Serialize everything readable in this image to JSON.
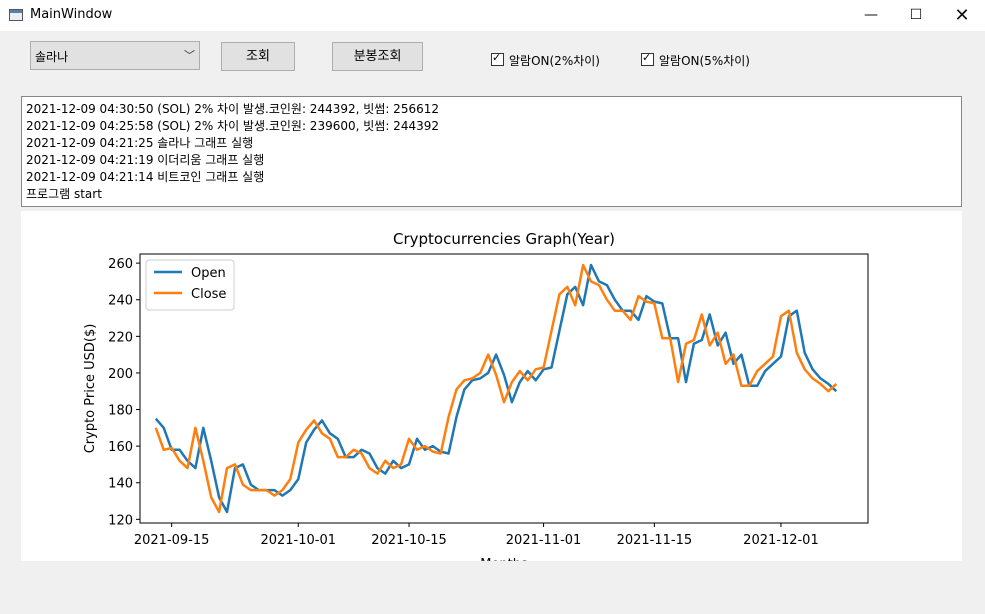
{
  "window": {
    "title": "MainWindow",
    "minimize_glyph": "—",
    "maximize_glyph": "☐",
    "close_glyph": "✕"
  },
  "toolbar": {
    "coin_select": "솔라나",
    "query_button": "조회",
    "minute_query_button": "분봉조회",
    "alarm_2pct": {
      "label": "알람ON(2%차이)",
      "checked": true
    },
    "alarm_5pct": {
      "label": "알람ON(5%차이)",
      "checked": true
    }
  },
  "log": {
    "lines": [
      "2021-12-09 04:30:50 (SOL) 2% 차이 발생.코인원: 244392, 빗썸: 256612",
      "2021-12-09 04:25:58 (SOL) 2% 차이 발생.코인원: 239600, 빗썸: 244392",
      "2021-12-09 04:21:25 솔라나 그래프 실행",
      "2021-12-09 04:21:19 이더리움 그래프 실행",
      "2021-12-09 04:21:14 비트코인 그래프 실행",
      "프로그램 start"
    ]
  },
  "chart_data": {
    "type": "line",
    "title": "Cryptocurrencies Graph(Year)",
    "xlabel": "Months",
    "ylabel": "Crypto Price USD($)",
    "x_start": "2021-09-13",
    "x_ticks": [
      "2021-09-15",
      "2021-10-01",
      "2021-10-15",
      "2021-11-01",
      "2021-11-15",
      "2021-12-01"
    ],
    "xlim": [
      "2021-09-11",
      "2021-12-12"
    ],
    "ylim": [
      118,
      265
    ],
    "y_ticks": [
      120,
      140,
      160,
      180,
      200,
      220,
      240,
      260
    ],
    "legend": "top-left",
    "series": [
      {
        "name": "Open",
        "color": "#1f77b4",
        "values": [
          175,
          170,
          158,
          158,
          152,
          148,
          170,
          152,
          132,
          124,
          148,
          150,
          139,
          136,
          136,
          136,
          133,
          136,
          142,
          162,
          169,
          174,
          167,
          164,
          154,
          154,
          158,
          156,
          148,
          145,
          152,
          148,
          150,
          164,
          158,
          160,
          157,
          156,
          176,
          191,
          196,
          197,
          200,
          210,
          199,
          184,
          195,
          201,
          196,
          202,
          203,
          223,
          243,
          247,
          237,
          259,
          250,
          248,
          240,
          234,
          234,
          229,
          242,
          239,
          238,
          219,
          219,
          195,
          216,
          218,
          232,
          215,
          222,
          205,
          210,
          193,
          193,
          201,
          205,
          209,
          231,
          234,
          211,
          202,
          197,
          194,
          190
        ]
      },
      {
        "name": "Close",
        "color": "#ff7f0e",
        "values": [
          170,
          158,
          159,
          152,
          148,
          170,
          152,
          132,
          124,
          148,
          150,
          139,
          136,
          136,
          136,
          133,
          136,
          142,
          162,
          169,
          174,
          167,
          164,
          154,
          154,
          158,
          156,
          148,
          145,
          152,
          148,
          150,
          164,
          158,
          160,
          157,
          156,
          176,
          191,
          196,
          197,
          200,
          210,
          199,
          184,
          195,
          201,
          196,
          202,
          203,
          223,
          243,
          247,
          237,
          259,
          250,
          248,
          240,
          234,
          234,
          229,
          242,
          239,
          238,
          219,
          219,
          195,
          216,
          218,
          232,
          215,
          222,
          205,
          210,
          193,
          193,
          201,
          205,
          209,
          231,
          234,
          211,
          202,
          197,
          194,
          190,
          194
        ]
      }
    ]
  }
}
